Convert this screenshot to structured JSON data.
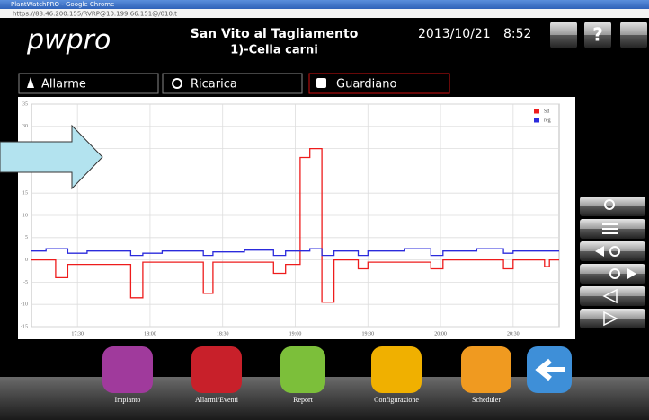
{
  "window": {
    "title": "PlantWatchPRO - Google Chrome",
    "url": "https://88.46.200.155/RVRP@10.199.66.151@/010.t"
  },
  "header": {
    "logo": "pwpro",
    "site": "San Vito al Tagliamento",
    "unit": "1)-Cella carni",
    "date": "2013/10/21",
    "time": "8:52"
  },
  "tabs": [
    "Allarme",
    "Ricarica",
    "Guardiano"
  ],
  "toolbar": [
    "Impianto",
    "Allarmi/Eventi",
    "Report",
    "Configurazione",
    "Scheduler"
  ],
  "chart_data": {
    "type": "line",
    "xlim": [
      1031,
      1249
    ],
    "xticks": [
      {
        "value": 1050,
        "label": "17:30"
      },
      {
        "value": 1080,
        "label": "18:00"
      },
      {
        "value": 1110,
        "label": "18:30"
      },
      {
        "value": 1140,
        "label": "19:00"
      },
      {
        "value": 1170,
        "label": "19:30"
      },
      {
        "value": 1200,
        "label": "20:00"
      },
      {
        "value": 1230,
        "label": "20:30"
      }
    ],
    "ylim": [
      -15,
      35
    ],
    "yticks": [
      -15,
      -10,
      -5,
      0,
      5,
      10,
      15,
      20,
      25,
      30,
      35
    ],
    "grid": true,
    "legend": "top-right",
    "series": [
      {
        "name": "Sd",
        "color": "#ee1c1c",
        "x": [
          1031,
          1041,
          1041,
          1046,
          1046,
          1072,
          1072,
          1077,
          1077,
          1102,
          1102,
          1106,
          1106,
          1131,
          1131,
          1136,
          1136,
          1142,
          1142,
          1146,
          1146,
          1151,
          1151,
          1156,
          1156,
          1166,
          1166,
          1170,
          1170,
          1196,
          1196,
          1201,
          1201,
          1226,
          1226,
          1230,
          1230,
          1243,
          1243,
          1245,
          1245,
          1249
        ],
        "values": [
          0,
          0,
          -4,
          -4,
          -1,
          -1,
          -8.5,
          -8.5,
          -0.5,
          -0.5,
          -7.5,
          -7.5,
          -0.5,
          -0.5,
          -3,
          -3,
          -1,
          -1,
          23,
          23,
          25,
          25,
          -9.5,
          -9.5,
          0,
          0,
          -2,
          -2,
          -0.5,
          -0.5,
          -2,
          -2,
          0,
          0,
          -2,
          -2,
          0,
          0,
          -1.5,
          -1.5,
          0,
          0
        ]
      },
      {
        "name": "reg",
        "color": "#2b2bdc",
        "x": [
          1031,
          1037,
          1037,
          1046,
          1046,
          1054,
          1054,
          1072,
          1072,
          1077,
          1077,
          1085,
          1085,
          1102,
          1102,
          1106,
          1106,
          1119,
          1119,
          1131,
          1131,
          1136,
          1136,
          1146,
          1146,
          1151,
          1151,
          1156,
          1156,
          1166,
          1166,
          1170,
          1170,
          1185,
          1185,
          1196,
          1196,
          1201,
          1201,
          1215,
          1215,
          1226,
          1226,
          1230,
          1230,
          1249
        ],
        "values": [
          2,
          2,
          2.5,
          2.5,
          1.5,
          1.5,
          2,
          2,
          1,
          1,
          1.5,
          1.5,
          2,
          2,
          1,
          1,
          1.8,
          1.8,
          2.2,
          2.2,
          1,
          1,
          2,
          2,
          2.5,
          2.5,
          1,
          1,
          2,
          2,
          1,
          1,
          2,
          2,
          2.5,
          2.5,
          1,
          1,
          2,
          2,
          2.5,
          2.5,
          1.5,
          1.5,
          2,
          2
        ]
      }
    ]
  }
}
